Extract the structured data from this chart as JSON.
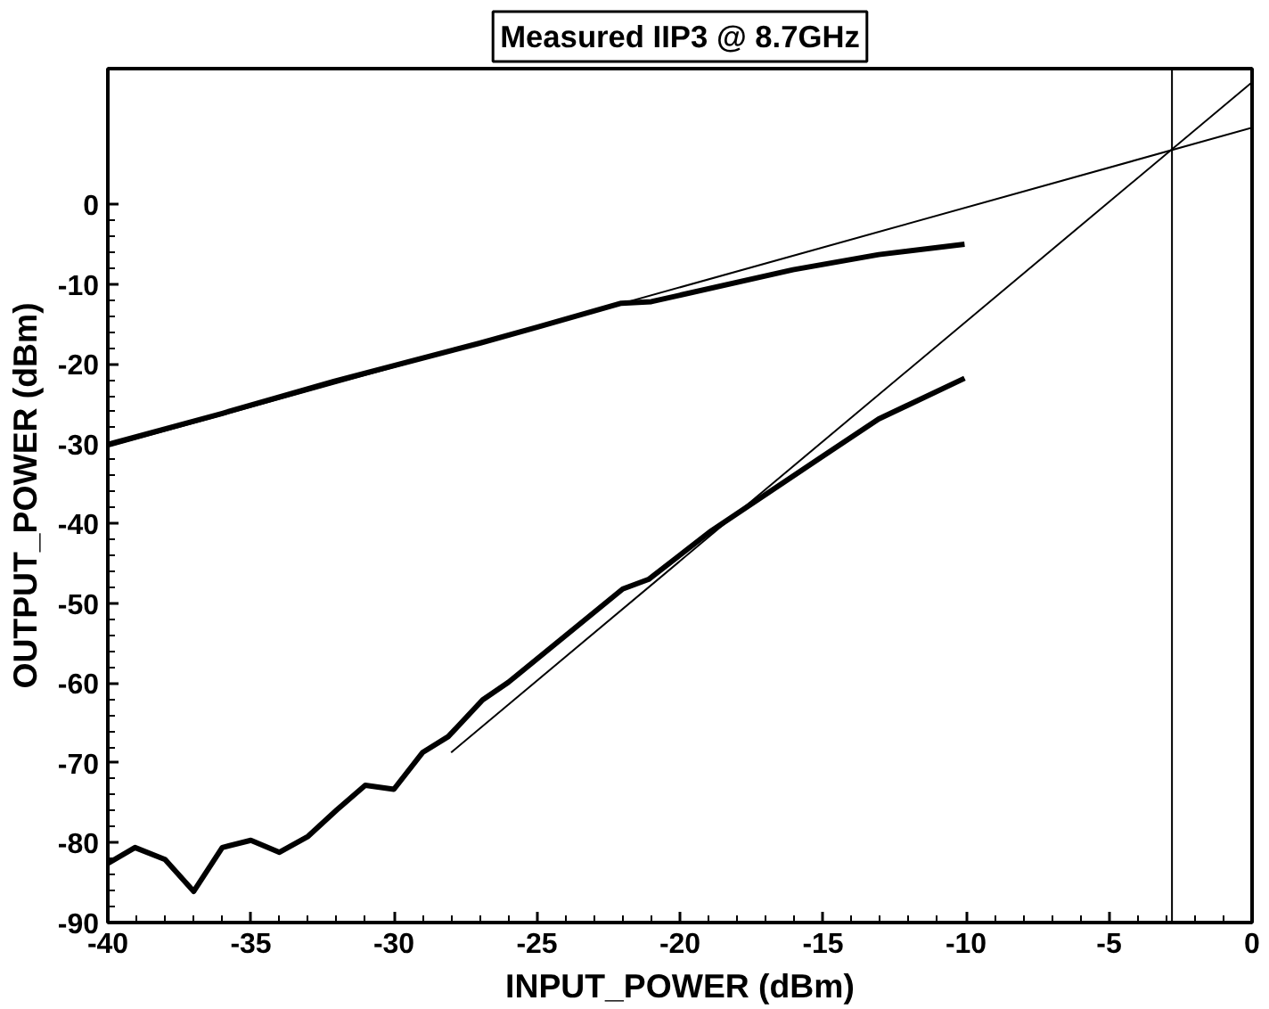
{
  "chart_data": {
    "type": "line",
    "title": "Measured IIP3 @ 8.7GHz",
    "xlabel": "INPUT_POWER (dBm)",
    "ylabel": "OUTPUT_POWER (dBm)",
    "xlim": [
      -40,
      0
    ],
    "ylim": [
      -90,
      17
    ],
    "xticks": [
      -40,
      -35,
      -30,
      -25,
      -20,
      -15,
      -10,
      -5,
      0
    ],
    "yticks": [
      -90,
      -80,
      -70,
      -60,
      -50,
      -40,
      -30,
      -20,
      -10,
      0
    ],
    "grid": false,
    "marker": "none",
    "line_style": "solid",
    "series": [
      {
        "color": "#000000",
        "x": [
          -40,
          -36,
          -32.1,
          -27,
          -25,
          -22.05,
          -21,
          -16.05,
          -13.05,
          -10.05
        ],
        "values": [
          -30.1,
          -26.2,
          -22.2,
          -17.4,
          -15.4,
          -12.4,
          -12.2,
          -8.2,
          -6.3,
          -5.0
        ]
      },
      {
        "color": "#000000",
        "x": [
          -40,
          -39.05,
          -38,
          -37,
          -36,
          -35,
          -34,
          -33,
          -32,
          -31,
          -30,
          -29,
          -28.1,
          -26.9,
          -26,
          -22,
          -21.1,
          -18.9,
          -15.4,
          -13.05,
          -10.05
        ],
        "values": [
          -82.6,
          -80.6,
          -82.1,
          -86.1,
          -80.6,
          -79.7,
          -81.2,
          -79.2,
          -75.9,
          -72.8,
          -73.3,
          -68.7,
          -66.7,
          -62.1,
          -59.9,
          -48.2,
          -47,
          -40.9,
          -32.5,
          -26.9,
          -21.8
        ]
      },
      {
        "color": "#000000",
        "x": [
          -40,
          0
        ],
        "values": [
          -30.4,
          9.6
        ]
      },
      {
        "color": "#000000",
        "x": [
          -28,
          0
        ],
        "values": [
          -68.7,
          15.3
        ]
      }
    ],
    "ref_lines": [
      {
        "axis": "x",
        "value": -2.8,
        "label": null,
        "color": "#000000"
      }
    ]
  }
}
